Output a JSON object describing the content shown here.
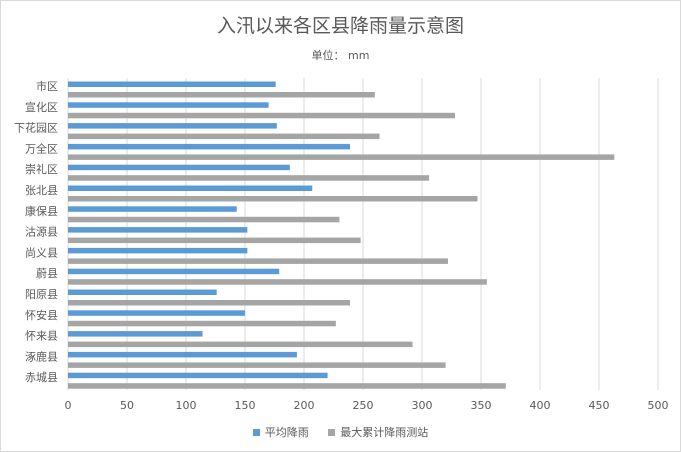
{
  "chart_data": {
    "type": "bar",
    "orientation": "horizontal",
    "title": "入汛以来各区县降雨量示意图",
    "subtitle": "单位：  mm",
    "categories": [
      "市区",
      "宣化区",
      "下花园区",
      "万全区",
      "崇礼区",
      "张北县",
      "康保县",
      "沽源县",
      "尚义县",
      "蔚县",
      "阳原县",
      "怀安县",
      "怀来县",
      "涿鹿县",
      "赤城县"
    ],
    "series": [
      {
        "name": "平均降雨",
        "color": "#5b9bd5",
        "values": [
          176,
          170,
          177,
          239,
          188,
          207,
          143,
          152,
          152,
          179,
          126,
          150,
          114,
          194,
          220
        ]
      },
      {
        "name": "最大累计降雨测站",
        "color": "#a5a5a5",
        "values": [
          260,
          328,
          264,
          463,
          306,
          347,
          230,
          248,
          322,
          355,
          239,
          227,
          292,
          320,
          371
        ]
      }
    ],
    "xlim": [
      0,
      500
    ],
    "xticks": [
      "0",
      "50",
      "100",
      "150",
      "200",
      "250",
      "300",
      "350",
      "400",
      "450",
      "500"
    ],
    "grid": true,
    "legend": "bottom"
  }
}
